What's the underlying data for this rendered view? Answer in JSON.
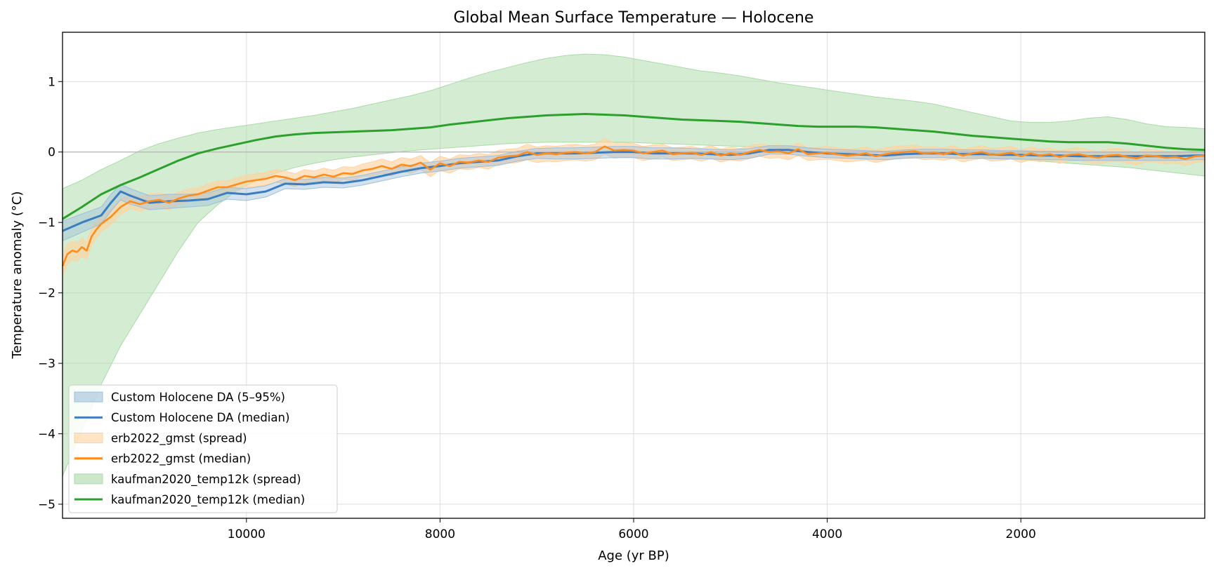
{
  "chart_data": {
    "type": "line",
    "title": "Global Mean Surface Temperature — Holocene",
    "xlabel": "Age (yr BP)",
    "ylabel": "Temperature anomaly (°C)",
    "xlim": [
      11900,
      100
    ],
    "ylim": [
      -5.2,
      1.7
    ],
    "x_reversed": true,
    "xticks": [
      10000,
      8000,
      6000,
      4000,
      2000
    ],
    "yticks": [
      1,
      0,
      -1,
      -2,
      -3,
      -4,
      -5
    ],
    "ytick_labels": [
      "1",
      "0",
      "−1",
      "−2",
      "−3",
      "−4",
      "−5"
    ],
    "grid": true,
    "zero_line": true,
    "legend_position": "lower-left",
    "colors": {
      "custom": "#3b7dbf",
      "custom_band": "#9dbfdc",
      "erb": "#ff8c1a",
      "erb_band": "#ffd2a0",
      "kaufman": "#2ca02c",
      "kaufman_band": "#a9dba6"
    },
    "legend": [
      {
        "label": "Custom Holocene DA (5–95%)",
        "kind": "band",
        "key": "custom_band"
      },
      {
        "label": "Custom Holocene DA (median)",
        "kind": "line",
        "key": "custom"
      },
      {
        "label": "erb2022_gmst (spread)",
        "kind": "band",
        "key": "erb_band"
      },
      {
        "label": "erb2022_gmst (median)",
        "kind": "line",
        "key": "erb"
      },
      {
        "label": "kaufman2020_temp12k (spread)",
        "kind": "band",
        "key": "kaufman_band"
      },
      {
        "label": "kaufman2020_temp12k (median)",
        "kind": "line",
        "key": "kaufman"
      }
    ],
    "series": [
      {
        "name": "kaufman2020_temp12k",
        "color_key": "kaufman",
        "x": [
          11900,
          11700,
          11500,
          11300,
          11100,
          10900,
          10700,
          10500,
          10300,
          10100,
          9900,
          9700,
          9500,
          9300,
          9100,
          8900,
          8700,
          8500,
          8300,
          8100,
          7900,
          7700,
          7500,
          7300,
          7100,
          6900,
          6700,
          6500,
          6300,
          6100,
          5900,
          5700,
          5500,
          5300,
          5100,
          4900,
          4700,
          4500,
          4300,
          4100,
          3900,
          3700,
          3500,
          3300,
          3100,
          2900,
          2700,
          2500,
          2300,
          2100,
          1900,
          1700,
          1500,
          1300,
          1100,
          900,
          700,
          500,
          300,
          100
        ],
        "median": [
          -0.95,
          -0.78,
          -0.6,
          -0.47,
          -0.36,
          -0.24,
          -0.12,
          -0.02,
          0.05,
          0.11,
          0.17,
          0.22,
          0.25,
          0.27,
          0.28,
          0.29,
          0.3,
          0.31,
          0.33,
          0.35,
          0.39,
          0.42,
          0.45,
          0.48,
          0.5,
          0.52,
          0.53,
          0.54,
          0.53,
          0.52,
          0.5,
          0.48,
          0.46,
          0.45,
          0.44,
          0.43,
          0.41,
          0.39,
          0.37,
          0.36,
          0.36,
          0.36,
          0.35,
          0.33,
          0.31,
          0.29,
          0.26,
          0.23,
          0.21,
          0.19,
          0.17,
          0.15,
          0.14,
          0.14,
          0.14,
          0.12,
          0.09,
          0.06,
          0.04,
          0.03
        ],
        "upper": [
          -0.52,
          -0.4,
          -0.25,
          -0.12,
          0.02,
          0.12,
          0.2,
          0.27,
          0.32,
          0.36,
          0.4,
          0.44,
          0.48,
          0.52,
          0.57,
          0.62,
          0.68,
          0.74,
          0.8,
          0.87,
          0.96,
          1.05,
          1.13,
          1.2,
          1.27,
          1.33,
          1.37,
          1.39,
          1.38,
          1.35,
          1.3,
          1.25,
          1.2,
          1.15,
          1.12,
          1.08,
          1.03,
          0.98,
          0.94,
          0.9,
          0.86,
          0.82,
          0.78,
          0.75,
          0.72,
          0.68,
          0.62,
          0.56,
          0.5,
          0.44,
          0.42,
          0.42,
          0.44,
          0.48,
          0.5,
          0.46,
          0.4,
          0.36,
          0.35,
          0.33
        ],
        "lower": [
          -4.6,
          -3.95,
          -3.3,
          -2.75,
          -2.3,
          -1.85,
          -1.4,
          -1.0,
          -0.75,
          -0.55,
          -0.4,
          -0.3,
          -0.22,
          -0.16,
          -0.11,
          -0.07,
          -0.04,
          -0.01,
          0.02,
          0.04,
          0.06,
          0.08,
          0.1,
          0.12,
          0.13,
          0.14,
          0.14,
          0.14,
          0.14,
          0.14,
          0.13,
          0.12,
          0.11,
          0.1,
          0.09,
          0.08,
          0.07,
          0.06,
          0.05,
          0.04,
          0.03,
          0.02,
          0.01,
          0.0,
          -0.01,
          -0.02,
          -0.04,
          -0.06,
          -0.08,
          -0.1,
          -0.12,
          -0.14,
          -0.16,
          -0.18,
          -0.2,
          -0.22,
          -0.25,
          -0.28,
          -0.31,
          -0.34
        ]
      },
      {
        "name": "erb2022_gmst",
        "color_key": "erb",
        "x": [
          11900,
          11850,
          11800,
          11750,
          11700,
          11650,
          11600,
          11550,
          11500,
          11400,
          11300,
          11200,
          11100,
          11000,
          10900,
          10800,
          10700,
          10600,
          10500,
          10400,
          10300,
          10200,
          10100,
          10000,
          9900,
          9800,
          9700,
          9600,
          9500,
          9400,
          9300,
          9200,
          9100,
          9000,
          8900,
          8800,
          8700,
          8600,
          8500,
          8400,
          8300,
          8200,
          8100,
          8000,
          7900,
          7800,
          7700,
          7600,
          7500,
          7400,
          7300,
          7200,
          7100,
          7000,
          6900,
          6800,
          6700,
          6600,
          6500,
          6400,
          6300,
          6200,
          6100,
          6000,
          5900,
          5800,
          5700,
          5600,
          5500,
          5400,
          5300,
          5200,
          5100,
          5000,
          4900,
          4800,
          4700,
          4600,
          4500,
          4400,
          4300,
          4200,
          4100,
          4000,
          3900,
          3800,
          3700,
          3600,
          3500,
          3400,
          3300,
          3200,
          3100,
          3000,
          2900,
          2800,
          2700,
          2600,
          2500,
          2400,
          2300,
          2200,
          2100,
          2000,
          1900,
          1800,
          1700,
          1600,
          1500,
          1400,
          1300,
          1200,
          1100,
          1000,
          900,
          800,
          700,
          600,
          500,
          400,
          300,
          200,
          100
        ],
        "median": [
          -1.62,
          -1.45,
          -1.4,
          -1.42,
          -1.35,
          -1.4,
          -1.2,
          -1.1,
          -1.02,
          -0.92,
          -0.78,
          -0.7,
          -0.74,
          -0.7,
          -0.68,
          -0.72,
          -0.66,
          -0.62,
          -0.6,
          -0.55,
          -0.5,
          -0.5,
          -0.46,
          -0.42,
          -0.4,
          -0.38,
          -0.34,
          -0.36,
          -0.4,
          -0.34,
          -0.36,
          -0.32,
          -0.35,
          -0.3,
          -0.31,
          -0.26,
          -0.24,
          -0.2,
          -0.24,
          -0.18,
          -0.2,
          -0.15,
          -0.25,
          -0.16,
          -0.2,
          -0.14,
          -0.15,
          -0.12,
          -0.14,
          -0.08,
          -0.06,
          -0.05,
          0.0,
          -0.04,
          -0.02,
          -0.03,
          -0.01,
          0.0,
          -0.02,
          0.0,
          0.08,
          0.02,
          0.03,
          0.02,
          -0.02,
          0.0,
          0.02,
          -0.03,
          -0.02,
          -0.01,
          -0.04,
          0.0,
          -0.05,
          -0.02,
          -0.04,
          0.0,
          0.03,
          0.0,
          0.01,
          -0.02,
          0.04,
          -0.03,
          -0.02,
          -0.01,
          -0.03,
          -0.05,
          -0.04,
          -0.02,
          -0.06,
          -0.03,
          -0.01,
          0.0,
          0.01,
          -0.02,
          -0.01,
          -0.03,
          0.0,
          -0.05,
          -0.02,
          0.0,
          -0.04,
          -0.03,
          -0.01,
          -0.06,
          -0.02,
          -0.05,
          -0.03,
          -0.07,
          -0.04,
          -0.03,
          -0.06,
          -0.08,
          -0.05,
          -0.04,
          -0.07,
          -0.09,
          -0.05,
          -0.06,
          -0.08,
          -0.07,
          -0.1,
          -0.06,
          -0.05
        ],
        "spread": [
          0.14,
          0.14,
          0.13,
          0.13,
          0.13,
          0.12,
          0.12,
          0.12,
          0.11,
          0.11,
          0.11,
          0.1,
          0.1,
          0.1,
          0.1,
          0.1,
          0.09,
          0.09,
          0.09,
          0.09,
          0.09,
          0.09,
          0.09,
          0.09,
          0.09,
          0.09,
          0.09,
          0.09,
          0.09,
          0.09,
          0.09,
          0.09,
          0.09,
          0.09,
          0.09,
          0.09,
          0.1,
          0.1,
          0.1,
          0.1,
          0.1,
          0.1,
          0.1,
          0.1,
          0.1,
          0.1,
          0.1,
          0.1,
          0.1,
          0.1,
          0.1,
          0.1,
          0.11,
          0.11,
          0.11,
          0.11,
          0.11,
          0.11,
          0.11,
          0.11,
          0.11,
          0.11,
          0.1,
          0.1,
          0.1,
          0.1,
          0.09,
          0.09,
          0.09,
          0.09,
          0.09,
          0.09,
          0.09,
          0.09,
          0.09,
          0.09,
          0.09,
          0.09,
          0.09,
          0.09,
          0.09,
          0.09,
          0.09,
          0.09,
          0.09,
          0.09,
          0.09,
          0.09,
          0.09,
          0.09,
          0.09,
          0.09,
          0.09,
          0.09,
          0.09,
          0.09,
          0.09,
          0.09,
          0.09,
          0.09,
          0.09,
          0.09,
          0.09,
          0.09,
          0.09,
          0.09,
          0.09,
          0.09,
          0.09,
          0.09,
          0.09,
          0.09,
          0.09,
          0.09,
          0.09,
          0.09,
          0.09,
          0.09,
          0.09,
          0.09,
          0.09,
          0.09,
          0.09
        ]
      },
      {
        "name": "Custom Holocene DA",
        "color_key": "custom",
        "x": [
          11900,
          11700,
          11500,
          11400,
          11300,
          11200,
          11000,
          10800,
          10600,
          10400,
          10200,
          10000,
          9800,
          9600,
          9400,
          9200,
          9000,
          8800,
          8600,
          8400,
          8200,
          8000,
          7800,
          7600,
          7400,
          7200,
          7000,
          6800,
          6600,
          6400,
          6200,
          6000,
          5800,
          5600,
          5400,
          5200,
          5000,
          4800,
          4600,
          4400,
          4200,
          4000,
          3800,
          3600,
          3400,
          3200,
          3000,
          2800,
          2600,
          2400,
          2200,
          2000,
          1800,
          1600,
          1400,
          1200,
          1000,
          800,
          600,
          400,
          200,
          100
        ],
        "median": [
          -1.12,
          -1.0,
          -0.9,
          -0.72,
          -0.56,
          -0.62,
          -0.72,
          -0.7,
          -0.69,
          -0.67,
          -0.58,
          -0.6,
          -0.56,
          -0.45,
          -0.46,
          -0.43,
          -0.44,
          -0.4,
          -0.34,
          -0.28,
          -0.23,
          -0.2,
          -0.16,
          -0.14,
          -0.12,
          -0.06,
          -0.02,
          -0.02,
          -0.02,
          -0.01,
          0.0,
          0.0,
          -0.02,
          -0.02,
          -0.02,
          -0.03,
          -0.04,
          -0.02,
          0.03,
          0.03,
          0.0,
          -0.02,
          -0.03,
          -0.04,
          -0.05,
          -0.03,
          -0.02,
          -0.02,
          -0.03,
          -0.03,
          -0.04,
          -0.04,
          -0.05,
          -0.05,
          -0.06,
          -0.06,
          -0.06,
          -0.06,
          -0.06,
          -0.06,
          -0.05,
          -0.05
        ],
        "upper": [
          -0.98,
          -0.88,
          -0.78,
          -0.6,
          -0.46,
          -0.52,
          -0.62,
          -0.6,
          -0.6,
          -0.58,
          -0.5,
          -0.52,
          -0.48,
          -0.38,
          -0.39,
          -0.36,
          -0.37,
          -0.33,
          -0.27,
          -0.21,
          -0.16,
          -0.13,
          -0.09,
          -0.07,
          -0.05,
          0.01,
          0.05,
          0.06,
          0.06,
          0.07,
          0.08,
          0.08,
          0.06,
          0.06,
          0.05,
          0.04,
          0.03,
          0.05,
          0.09,
          0.09,
          0.06,
          0.04,
          0.03,
          0.02,
          0.01,
          0.03,
          0.04,
          0.04,
          0.03,
          0.03,
          0.02,
          0.02,
          0.01,
          0.01,
          0.0,
          0.0,
          0.0,
          0.0,
          0.0,
          0.0,
          0.01,
          0.01
        ],
        "lower": [
          -1.26,
          -1.14,
          -1.02,
          -0.84,
          -0.68,
          -0.74,
          -0.82,
          -0.8,
          -0.78,
          -0.76,
          -0.67,
          -0.69,
          -0.64,
          -0.52,
          -0.53,
          -0.5,
          -0.51,
          -0.47,
          -0.41,
          -0.35,
          -0.3,
          -0.27,
          -0.23,
          -0.21,
          -0.19,
          -0.13,
          -0.09,
          -0.1,
          -0.1,
          -0.09,
          -0.08,
          -0.08,
          -0.1,
          -0.1,
          -0.09,
          -0.1,
          -0.11,
          -0.09,
          -0.03,
          -0.03,
          -0.06,
          -0.08,
          -0.09,
          -0.1,
          -0.11,
          -0.09,
          -0.08,
          -0.08,
          -0.09,
          -0.09,
          -0.1,
          -0.1,
          -0.11,
          -0.11,
          -0.12,
          -0.12,
          -0.12,
          -0.12,
          -0.12,
          -0.12,
          -0.11,
          -0.11
        ]
      }
    ]
  }
}
